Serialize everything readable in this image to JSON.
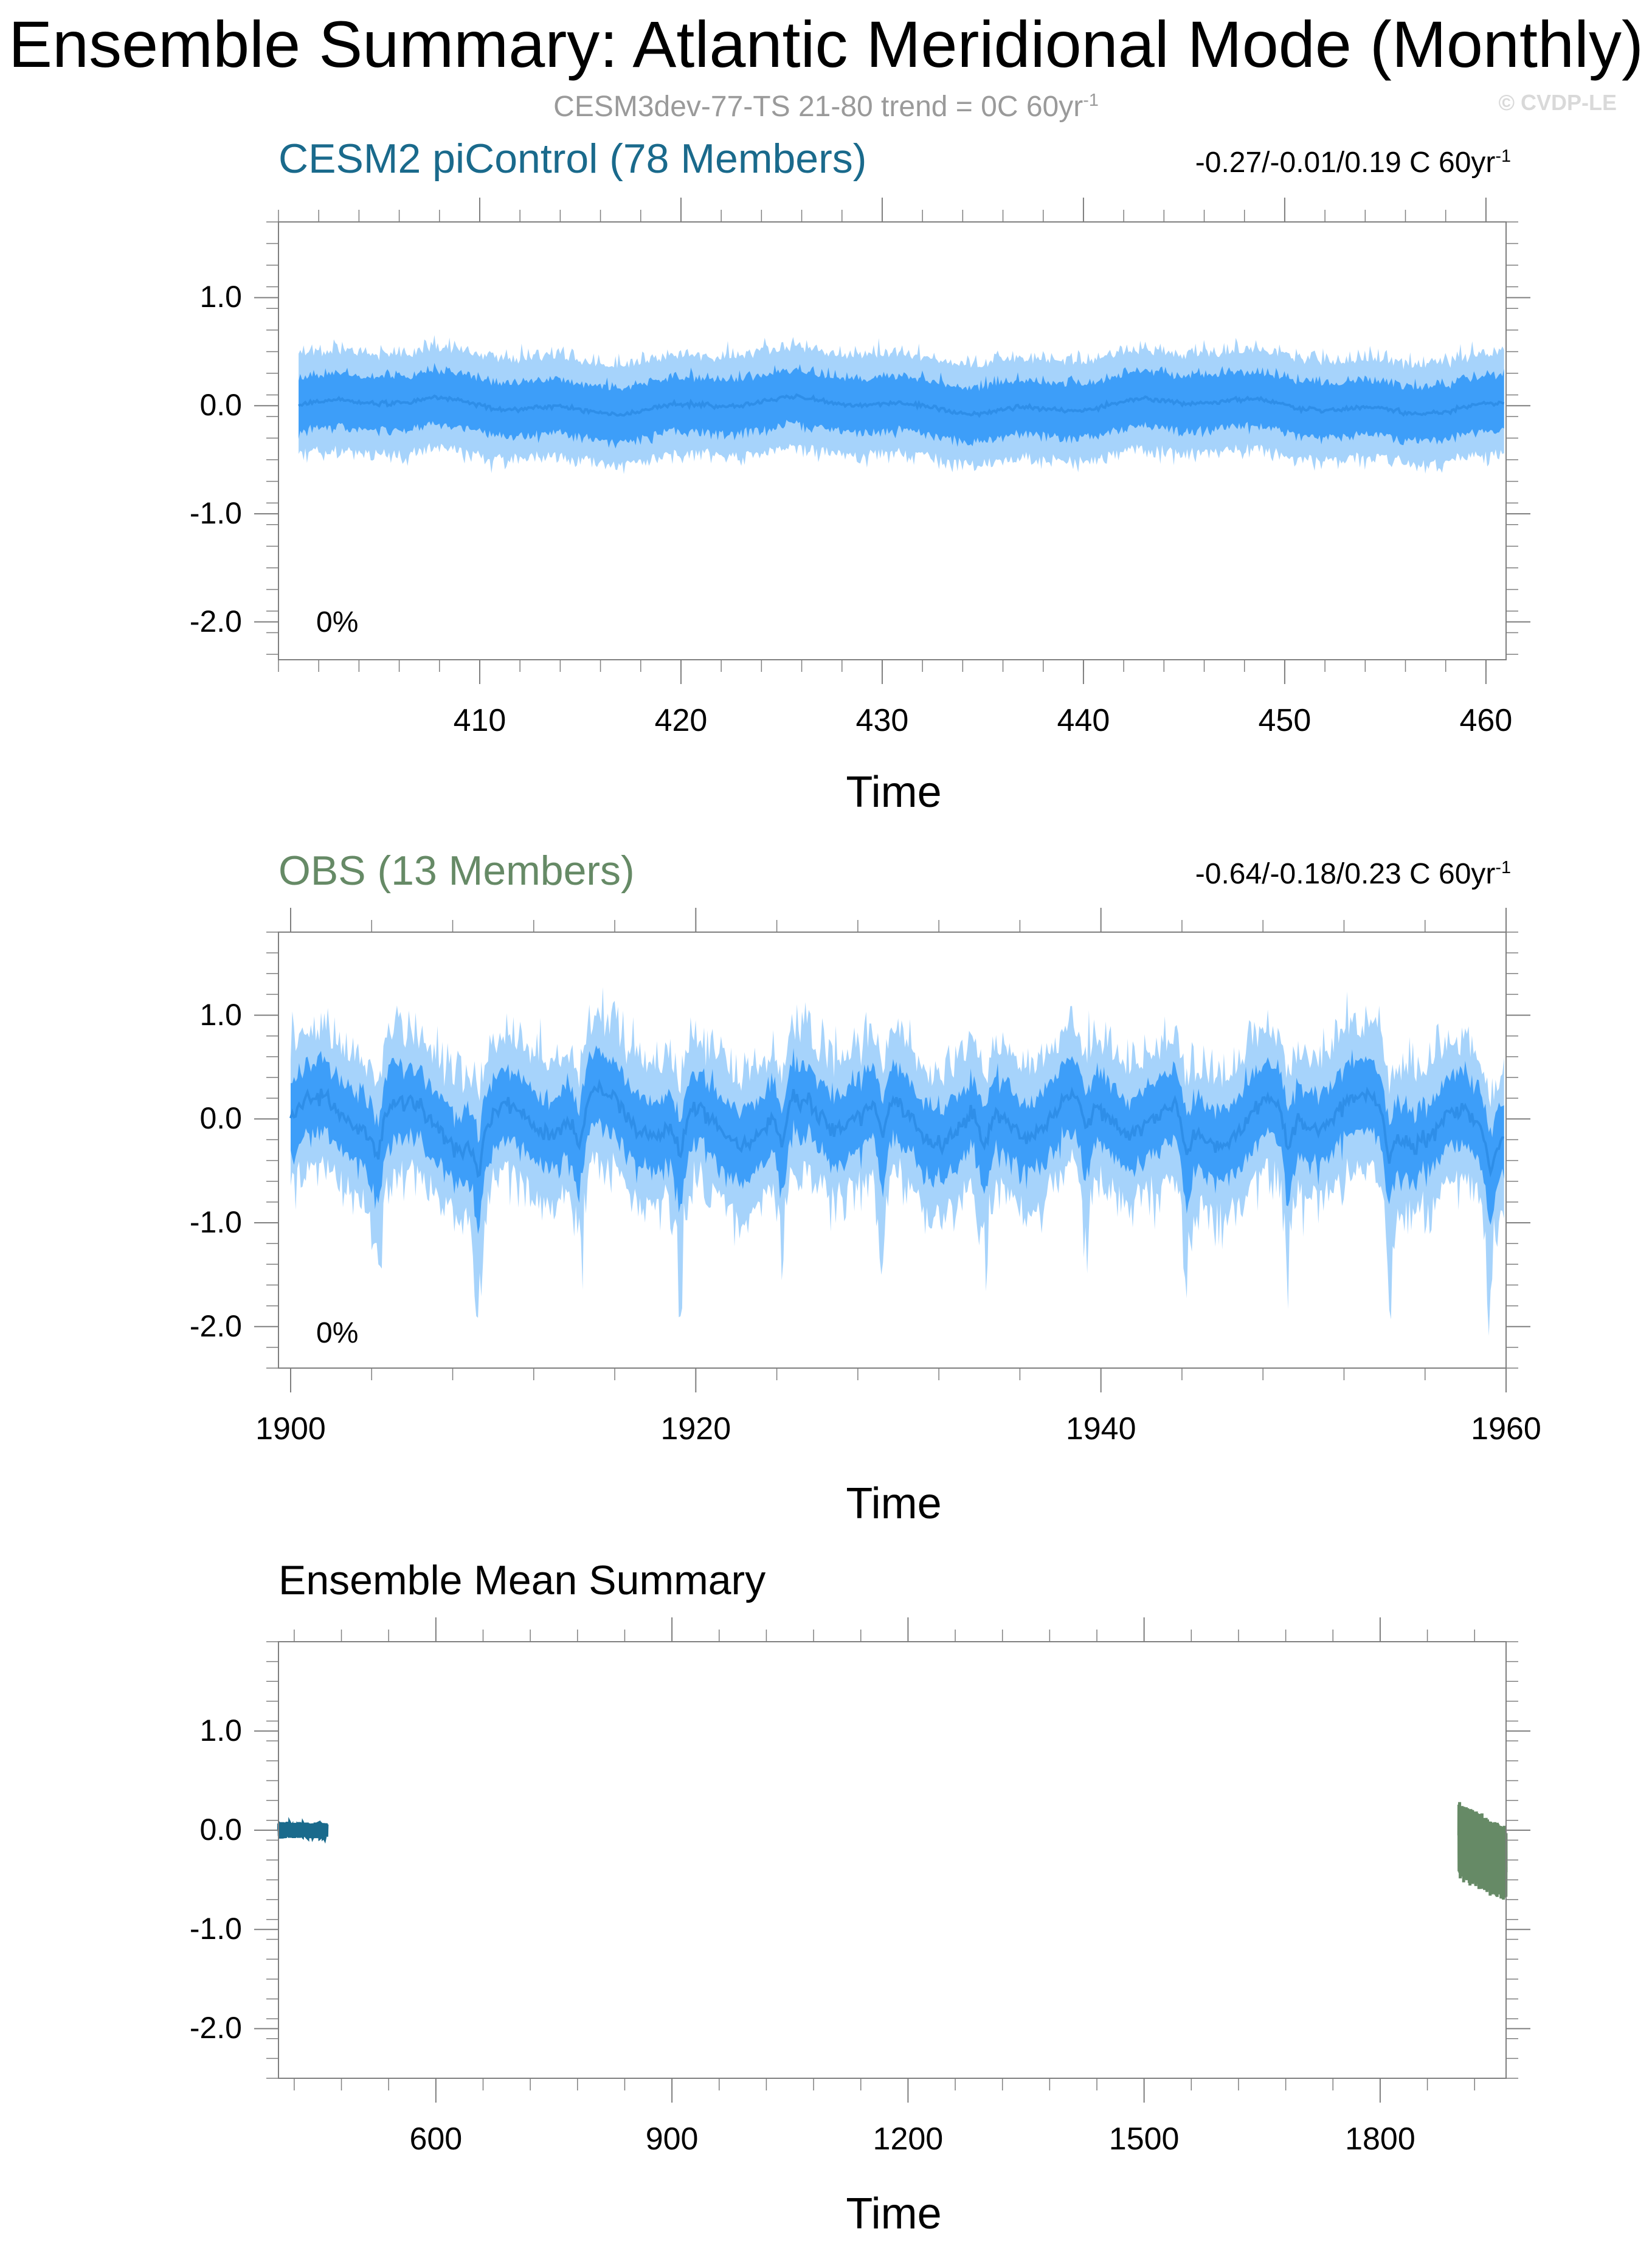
{
  "header": {
    "title": "Ensemble Summary: Atlantic Meridional Mode (Monthly)",
    "subtitle_main": "CESM3dev-77-TS 21-80 trend = 0C 60yr",
    "subtitle_sup": "-1",
    "copyright": "© CVDP-LE"
  },
  "colors": {
    "band_outer": "#a6d3fb",
    "band_inner": "#3d9ef9",
    "mean_line": "#2e8ee8",
    "model_color": "#1a6a8c",
    "obs_color": "#668a66",
    "axis": "#7f7f7f"
  },
  "chart_data": [
    {
      "type": "area",
      "name": "model-panel",
      "title": "CESM2 piControl (78 Members)",
      "trend_range": "-0.27/-0.01/0.19 C 60yr",
      "trend_sup": "-1",
      "percent_label": "0%",
      "xlabel": "Time",
      "ylabel": "",
      "xlim": [
        400,
        461
      ],
      "ylim": [
        -2.35,
        1.7
      ],
      "x_ticks": [
        410,
        420,
        430,
        440,
        450,
        460
      ],
      "x_tick_labels": [
        "410",
        "420",
        "430",
        "440",
        "450",
        "460"
      ],
      "y_ticks": [
        1.0,
        0.0,
        -1.0,
        -2.0
      ],
      "y_tick_labels": [
        "1.0",
        "0.0",
        "-1.0",
        "-2.0"
      ],
      "series": [
        {
          "name": "",
          "values_description_only_in_script": true
        }
      ]
    },
    {
      "type": "area",
      "name": "obs-panel",
      "title": "OBS (13 Members)",
      "trend_range": "-0.64/-0.18/0.23 C 60yr",
      "trend_sup": "-1",
      "percent_label": "0%",
      "xlabel": "Time",
      "ylabel": "",
      "xlim": [
        1899.4,
        1960.0
      ],
      "ylim": [
        -2.4,
        1.8
      ],
      "x_ticks": [
        1900,
        1920,
        1940,
        1960
      ],
      "x_tick_labels": [
        "1900",
        "1920",
        "1940",
        "1960"
      ],
      "y_ticks": [
        1.0,
        0.0,
        -1.0,
        -2.0
      ],
      "y_tick_labels": [
        "1.0",
        "0.0",
        "-1.0",
        "-2.0"
      ]
    },
    {
      "type": "line",
      "name": "ensemble-mean-panel",
      "title": "Ensemble Mean Summary",
      "xlabel": "Time",
      "ylabel": "",
      "xlim": [
        400,
        1960
      ],
      "ylim": [
        -2.5,
        1.9
      ],
      "x_ticks": [
        600,
        900,
        1200,
        1500,
        1800
      ],
      "x_tick_labels": [
        "600",
        "900",
        "1200",
        "1500",
        "1800"
      ],
      "y_ticks": [
        1.0,
        0.0,
        -1.0,
        -2.0
      ],
      "y_tick_labels": [
        "1.0",
        "0.0",
        "-1.0",
        "-2.0"
      ],
      "series": [
        {
          "name": "",
          "color_key": "model_color",
          "x_range": [
            401,
            461
          ]
        },
        {
          "name": "",
          "color_key": "obs_color",
          "x_range": [
            1900,
            1960
          ]
        }
      ]
    }
  ]
}
